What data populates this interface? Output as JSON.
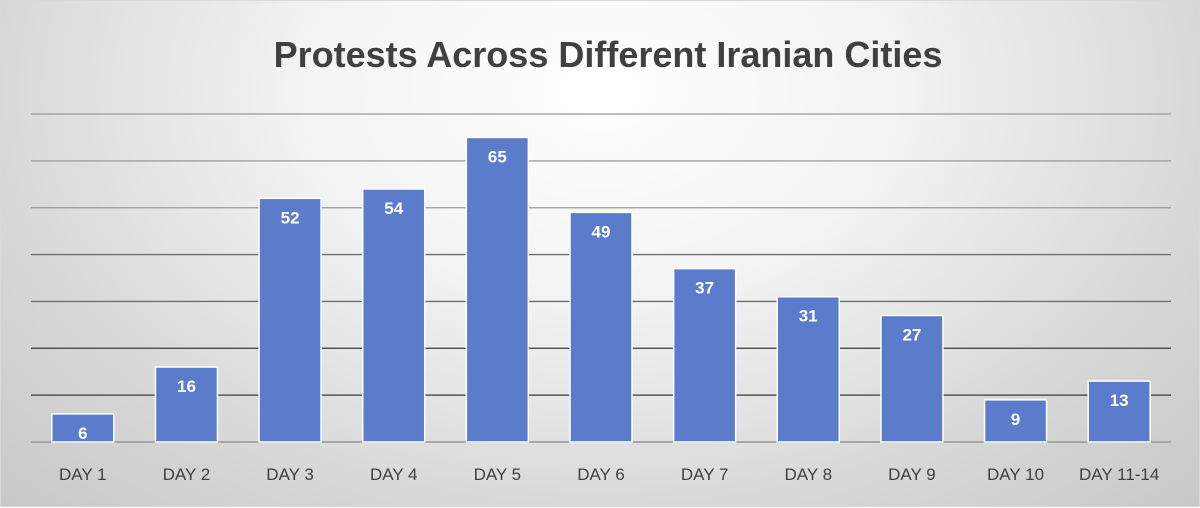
{
  "chart_data": {
    "type": "bar",
    "title": "Protests Across Different Iranian Cities",
    "xlabel": "",
    "ylabel": "",
    "categories": [
      "DAY 1",
      "DAY 2",
      "DAY 3",
      "DAY 4",
      "DAY 5",
      "DAY 6",
      "DAY 7",
      "DAY 8",
      "DAY 9",
      "DAY 10",
      "DAY 11-14"
    ],
    "series": [
      {
        "values": [
          6,
          16,
          52,
          54,
          65,
          49,
          37,
          31,
          27,
          9,
          13
        ],
        "color": "#5b7ccb"
      }
    ],
    "ylim": [
      0,
      70
    ],
    "gridline_step": 10,
    "grid": true,
    "y_axis_labels_shown": false,
    "data_labels_shown": true,
    "legend": "none"
  }
}
